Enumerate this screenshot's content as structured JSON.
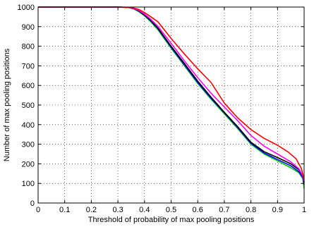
{
  "chart_data": {
    "type": "line",
    "title": "",
    "xlabel": "Threshold of probability of max pooling positions",
    "ylabel": "Number of max pooling positions",
    "xlim": [
      0,
      1
    ],
    "ylim": [
      0,
      1000
    ],
    "xticks": [
      0,
      0.1,
      0.2,
      0.3,
      0.4,
      0.5,
      0.6,
      0.7,
      0.8,
      0.9,
      1
    ],
    "xtick_labels": [
      "0",
      "0.1",
      "0.2",
      "0.3",
      "0.4",
      "0.5",
      "0.6",
      "0.7",
      "0.8",
      "0.9",
      "1"
    ],
    "yticks": [
      0,
      100,
      200,
      300,
      400,
      500,
      600,
      700,
      800,
      900,
      1000
    ],
    "ytick_labels": [
      "0",
      "100",
      "200",
      "300",
      "400",
      "500",
      "600",
      "700",
      "800",
      "900",
      "1000"
    ],
    "grid": true,
    "legend": "none",
    "series": [
      {
        "color": "#00cc00",
        "x": [
          0,
          0.3,
          0.34,
          0.36,
          0.38,
          0.4,
          0.42,
          0.45,
          0.5,
          0.55,
          0.6,
          0.65,
          0.7,
          0.75,
          0.8,
          0.85,
          0.9,
          0.95,
          0.98,
          0.995,
          1.0
        ],
        "y": [
          1000,
          1000,
          998,
          990,
          975,
          955,
          930,
          885,
          790,
          700,
          610,
          530,
          455,
          380,
          300,
          250,
          215,
          180,
          155,
          125,
          75
        ]
      },
      {
        "color": "#0000ff",
        "x": [
          0,
          0.3,
          0.34,
          0.36,
          0.38,
          0.4,
          0.42,
          0.45,
          0.5,
          0.55,
          0.6,
          0.65,
          0.7,
          0.75,
          0.8,
          0.85,
          0.9,
          0.95,
          0.98,
          0.995,
          1.0
        ],
        "y": [
          1000,
          1000,
          998,
          992,
          978,
          958,
          934,
          890,
          795,
          705,
          615,
          535,
          460,
          385,
          305,
          255,
          222,
          190,
          160,
          130,
          95
        ]
      },
      {
        "color": "#000000",
        "x": [
          0,
          0.3,
          0.34,
          0.36,
          0.38,
          0.4,
          0.42,
          0.45,
          0.5,
          0.55,
          0.6,
          0.65,
          0.7,
          0.75,
          0.8,
          0.85,
          0.9,
          0.95,
          0.98,
          0.995,
          1.0
        ],
        "y": [
          1000,
          1000,
          998,
          993,
          980,
          960,
          937,
          893,
          800,
          712,
          622,
          540,
          463,
          390,
          310,
          262,
          232,
          200,
          170,
          140,
          105
        ]
      },
      {
        "color": "#ff00ff",
        "x": [
          0,
          0.3,
          0.34,
          0.36,
          0.38,
          0.4,
          0.42,
          0.45,
          0.5,
          0.55,
          0.6,
          0.65,
          0.7,
          0.75,
          0.8,
          0.85,
          0.9,
          0.95,
          0.98,
          0.995,
          1.0
        ],
        "y": [
          1000,
          1000,
          998,
          993,
          982,
          964,
          942,
          902,
          815,
          725,
          640,
          560,
          490,
          420,
          345,
          290,
          250,
          210,
          175,
          140,
          110
        ]
      },
      {
        "color": "#ff0000",
        "x": [
          0,
          0.3,
          0.34,
          0.36,
          0.38,
          0.4,
          0.42,
          0.45,
          0.5,
          0.55,
          0.6,
          0.65,
          0.7,
          0.75,
          0.8,
          0.85,
          0.9,
          0.94,
          0.97,
          0.99,
          1.0
        ],
        "y": [
          1000,
          1000,
          999,
          995,
          987,
          972,
          954,
          925,
          840,
          760,
          685,
          615,
          510,
          435,
          375,
          330,
          295,
          260,
          225,
          175,
          120
        ]
      }
    ]
  }
}
